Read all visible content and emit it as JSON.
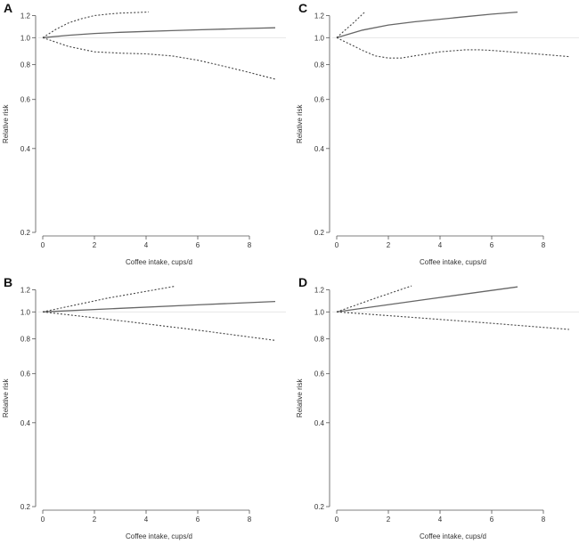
{
  "figure": {
    "panels": [
      {
        "id": "A"
      },
      {
        "id": "C"
      },
      {
        "id": "B"
      },
      {
        "id": "D"
      }
    ]
  },
  "chart_data": [
    {
      "panel": "A",
      "type": "line",
      "xlabel": "Coffee intake, cups/d",
      "ylabel": "Relative risk",
      "yscale": "log",
      "xlim": [
        0,
        9
      ],
      "ylim": [
        0.2,
        1.25
      ],
      "xticks": [
        0,
        2,
        4,
        6,
        8
      ],
      "yticks": [
        0.2,
        0.4,
        0.6,
        0.8,
        1.0,
        1.2
      ],
      "ytick_labels": [
        "0.2",
        "0.4",
        "0.6",
        "0.8",
        "1.0",
        "1.2"
      ],
      "series": [
        {
          "name": "estimate",
          "style": "solid",
          "x": [
            0,
            1,
            2,
            3,
            4,
            5,
            6,
            7,
            8,
            9
          ],
          "y": [
            1.0,
            1.02,
            1.035,
            1.045,
            1.053,
            1.06,
            1.067,
            1.073,
            1.08,
            1.085
          ]
        },
        {
          "name": "upper CI",
          "style": "dotted",
          "x": [
            0,
            0.5,
            1,
            1.5,
            2,
            2.5,
            3,
            3.5,
            4,
            4.1
          ],
          "y": [
            1.0,
            1.07,
            1.13,
            1.17,
            1.2,
            1.215,
            1.225,
            1.23,
            1.235,
            1.237
          ]
        },
        {
          "name": "lower CI",
          "style": "dotted",
          "x": [
            0,
            1,
            2,
            3,
            4,
            5,
            6,
            7,
            8,
            9
          ],
          "y": [
            1.0,
            0.93,
            0.89,
            0.88,
            0.875,
            0.86,
            0.83,
            0.79,
            0.75,
            0.71
          ]
        }
      ]
    },
    {
      "panel": "C",
      "type": "line",
      "xlabel": "Coffee intake, cups/d",
      "ylabel": "Relative risk",
      "yscale": "log",
      "xlim": [
        0,
        9
      ],
      "ylim": [
        0.2,
        1.25
      ],
      "xticks": [
        0,
        2,
        4,
        6,
        8
      ],
      "yticks": [
        0.2,
        0.4,
        0.6,
        0.8,
        1.0,
        1.2
      ],
      "ytick_labels": [
        "0.2",
        "0.4",
        "0.6",
        "0.8",
        "1.0",
        "1.2"
      ],
      "series": [
        {
          "name": "estimate",
          "style": "solid",
          "x": [
            0,
            1,
            2,
            3,
            4,
            5,
            6,
            7
          ],
          "y": [
            1.0,
            1.065,
            1.11,
            1.14,
            1.165,
            1.19,
            1.215,
            1.235
          ]
        },
        {
          "name": "upper CI",
          "style": "dotted",
          "x": [
            0,
            0.3,
            0.6,
            0.9,
            1.1
          ],
          "y": [
            1.0,
            1.06,
            1.12,
            1.19,
            1.24
          ]
        },
        {
          "name": "lower CI",
          "style": "dotted",
          "x": [
            0,
            1,
            1.5,
            2,
            2.5,
            3,
            4,
            5,
            5.5,
            6,
            7,
            8,
            9
          ],
          "y": [
            1.0,
            0.9,
            0.86,
            0.845,
            0.845,
            0.86,
            0.89,
            0.905,
            0.905,
            0.9,
            0.885,
            0.87,
            0.855
          ]
        }
      ]
    },
    {
      "panel": "B",
      "type": "line",
      "xlabel": "Coffee intake, cups/d",
      "ylabel": "Relative risk",
      "yscale": "log",
      "xlim": [
        0,
        9
      ],
      "ylim": [
        0.2,
        1.25
      ],
      "xticks": [
        0,
        2,
        4,
        6,
        8
      ],
      "yticks": [
        0.2,
        0.4,
        0.6,
        0.8,
        1.0,
        1.2
      ],
      "ytick_labels": [
        "0.2",
        "0.4",
        "0.6",
        "0.8",
        "1.0",
        "1.2"
      ],
      "series": [
        {
          "name": "estimate",
          "style": "solid",
          "x": [
            0,
            3,
            6,
            9
          ],
          "y": [
            1.0,
            1.03,
            1.06,
            1.09
          ]
        },
        {
          "name": "upper CI",
          "style": "dotted",
          "x": [
            0,
            2.5,
            5.1
          ],
          "y": [
            1.0,
            1.12,
            1.235
          ]
        },
        {
          "name": "lower CI",
          "style": "dotted",
          "x": [
            0,
            3,
            6,
            9
          ],
          "y": [
            1.0,
            0.93,
            0.86,
            0.79
          ]
        }
      ]
    },
    {
      "panel": "D",
      "type": "line",
      "xlabel": "Coffee intake, cups/d",
      "ylabel": "Relative risk",
      "yscale": "log",
      "xlim": [
        0,
        9
      ],
      "ylim": [
        0.2,
        1.25
      ],
      "xticks": [
        0,
        2,
        4,
        6,
        8
      ],
      "yticks": [
        0.2,
        0.4,
        0.6,
        0.8,
        1.0,
        1.2
      ],
      "ytick_labels": [
        "0.2",
        "0.4",
        "0.6",
        "0.8",
        "1.0",
        "1.2"
      ],
      "series": [
        {
          "name": "estimate",
          "style": "solid",
          "x": [
            0,
            3.5,
            7
          ],
          "y": [
            1.0,
            1.11,
            1.23
          ]
        },
        {
          "name": "upper CI",
          "style": "dotted",
          "x": [
            0,
            1.5,
            2.9
          ],
          "y": [
            1.0,
            1.12,
            1.24
          ]
        },
        {
          "name": "lower CI",
          "style": "dotted",
          "x": [
            0,
            3,
            6,
            9
          ],
          "y": [
            1.0,
            0.955,
            0.91,
            0.865
          ]
        }
      ]
    }
  ]
}
